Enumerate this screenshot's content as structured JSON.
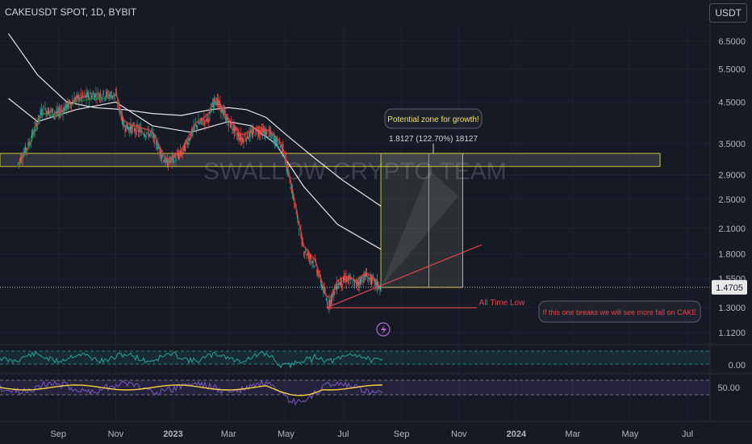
{
  "header": {
    "symbol_title": "CAKEUSDT SPOT, 1D, BYBIT",
    "currency_button": "USDT"
  },
  "watermark": "SWALLOW CRYPTO TEAM",
  "colors": {
    "background": "#161a25",
    "candle_up": "#26a69a",
    "candle_down": "#ef5350",
    "ma_slow": "#e6e6e6",
    "ma_red": "#e53935",
    "ma_green": "#2e7d32",
    "zone_border": "#c9c23a",
    "trendline": "#e5484d",
    "rsi_line": "#26a69a",
    "stoch_yellow": "#f5d142",
    "stoch_purple": "#7e57c2"
  },
  "chart_data": {
    "type": "candlestick",
    "price_axis": {
      "scale": "log",
      "ticks": [
        "6.5000",
        "5.5000",
        "4.5000",
        "3.5000",
        "2.9000",
        "2.5000",
        "2.1000",
        "1.8000",
        "1.5500",
        "1.3000",
        "1.1200"
      ],
      "current_price": "1.4705"
    },
    "time_axis": {
      "ticks": [
        "Sep",
        "Nov",
        "2023",
        "Mar",
        "May",
        "Jul",
        "Sep",
        "Nov",
        "2024",
        "Mar",
        "May",
        "Jul"
      ]
    },
    "price_path": [
      {
        "t": "2022-07-20",
        "p": 3.1
      },
      {
        "t": "2022-08-01",
        "p": 3.5
      },
      {
        "t": "2022-08-15",
        "p": 4.3
      },
      {
        "t": "2022-09-01",
        "p": 4.2
      },
      {
        "t": "2022-09-20",
        "p": 4.6
      },
      {
        "t": "2022-10-10",
        "p": 4.7
      },
      {
        "t": "2022-11-01",
        "p": 4.7
      },
      {
        "t": "2022-11-10",
        "p": 3.9
      },
      {
        "t": "2022-11-25",
        "p": 3.8
      },
      {
        "t": "2022-12-10",
        "p": 3.7
      },
      {
        "t": "2022-12-25",
        "p": 3.1
      },
      {
        "t": "2023-01-10",
        "p": 3.3
      },
      {
        "t": "2023-01-25",
        "p": 3.9
      },
      {
        "t": "2023-02-08",
        "p": 4.1
      },
      {
        "t": "2023-02-15",
        "p": 4.6
      },
      {
        "t": "2023-03-01",
        "p": 4.0
      },
      {
        "t": "2023-03-15",
        "p": 3.6
      },
      {
        "t": "2023-04-01",
        "p": 3.8
      },
      {
        "t": "2023-04-15",
        "p": 3.7
      },
      {
        "t": "2023-04-28",
        "p": 3.4
      },
      {
        "t": "2023-05-08",
        "p": 2.6
      },
      {
        "t": "2023-05-20",
        "p": 1.85
      },
      {
        "t": "2023-06-01",
        "p": 1.7
      },
      {
        "t": "2023-06-10",
        "p": 1.45
      },
      {
        "t": "2023-06-15",
        "p": 1.32
      },
      {
        "t": "2023-06-25",
        "p": 1.5
      },
      {
        "t": "2023-07-05",
        "p": 1.55
      },
      {
        "t": "2023-07-15",
        "p": 1.5
      },
      {
        "t": "2023-07-25",
        "p": 1.58
      },
      {
        "t": "2023-08-10",
        "p": 1.47
      }
    ],
    "moving_averages": [
      {
        "color": "#e6e6e6",
        "points": [
          {
            "t": "2022-07-10",
            "p": 6.8
          },
          {
            "t": "2022-08-10",
            "p": 5.3
          },
          {
            "t": "2022-09-10",
            "p": 4.5
          },
          {
            "t": "2022-10-10",
            "p": 4.35
          },
          {
            "t": "2022-11-10",
            "p": 4.3
          },
          {
            "t": "2022-12-10",
            "p": 4.2
          },
          {
            "t": "2023-01-10",
            "p": 4.15
          },
          {
            "t": "2023-02-10",
            "p": 4.3
          },
          {
            "t": "2023-03-01",
            "p": 4.35
          },
          {
            "t": "2023-03-20",
            "p": 4.3
          },
          {
            "t": "2023-04-10",
            "p": 4.1
          },
          {
            "t": "2023-05-01",
            "p": 3.7
          },
          {
            "t": "2023-06-01",
            "p": 3.2
          },
          {
            "t": "2023-07-01",
            "p": 2.8
          },
          {
            "t": "2023-08-10",
            "p": 2.4
          }
        ]
      },
      {
        "color": "#e6e6e6",
        "points": [
          {
            "t": "2022-07-10",
            "p": 4.6
          },
          {
            "t": "2022-08-10",
            "p": 4.0
          },
          {
            "t": "2022-09-20",
            "p": 4.3
          },
          {
            "t": "2022-11-01",
            "p": 4.5
          },
          {
            "t": "2022-12-10",
            "p": 3.9
          },
          {
            "t": "2023-01-20",
            "p": 3.75
          },
          {
            "t": "2023-03-01",
            "p": 4.0
          },
          {
            "t": "2023-03-25",
            "p": 3.9
          },
          {
            "t": "2023-04-20",
            "p": 3.5
          },
          {
            "t": "2023-05-20",
            "p": 2.7
          },
          {
            "t": "2023-06-25",
            "p": 2.15
          },
          {
            "t": "2023-08-10",
            "p": 1.85
          }
        ]
      }
    ],
    "zone": {
      "label": "Potential zone for growth!",
      "measure_label": "1.8127 (122.70%) 18127",
      "band_top": 3.3,
      "band_bottom": 3.05,
      "box_start": "2023-08-10",
      "box_end": "2023-11-05",
      "box_low": 1.47,
      "box_high": 3.3,
      "center_date": "2023-09-30"
    },
    "all_time_low": {
      "label": "All Time Low",
      "price": 1.3,
      "start": "2023-06-13",
      "end": "2023-11-20",
      "note": "If this one breaks we will see more fall on CAKE"
    },
    "trendline": {
      "start": {
        "t": "2023-06-13",
        "p": 1.3
      },
      "end": {
        "t": "2023-11-25",
        "p": 1.9
      }
    },
    "rsi_axis": {
      "ticks": [
        "0.00"
      ]
    },
    "stoch_axis": {
      "ticks": [
        "50.00"
      ]
    }
  }
}
